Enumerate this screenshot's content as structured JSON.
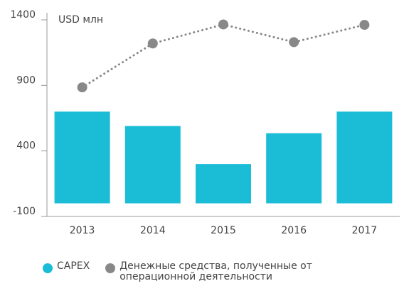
{
  "chart_data": {
    "type": "bar_line",
    "y_label": "USD млн",
    "categories": [
      "2013",
      "2014",
      "2015",
      "2016",
      "2017"
    ],
    "series": [
      {
        "name": "CAPEX",
        "type": "bar",
        "color": "#1bbcd6",
        "values": [
          700,
          590,
          300,
          535,
          700
        ]
      },
      {
        "name": "Денежные средства, полученные от операционной деятельности",
        "type": "line",
        "color": "#888888",
        "values": [
          885,
          1220,
          1365,
          1230,
          1362
        ]
      }
    ],
    "ylim": [
      -100,
      1400
    ],
    "yticks": [
      -100,
      400,
      900,
      1400
    ],
    "grid": false
  }
}
